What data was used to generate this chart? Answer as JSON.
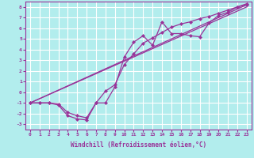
{
  "xlabel": "Windchill (Refroidissement éolien,°C)",
  "xlim": [
    -0.5,
    23.5
  ],
  "ylim": [
    -3.5,
    8.5
  ],
  "yticks": [
    -3,
    -2,
    -1,
    0,
    1,
    2,
    3,
    4,
    5,
    6,
    7,
    8
  ],
  "xticks": [
    0,
    1,
    2,
    3,
    4,
    5,
    6,
    7,
    8,
    9,
    10,
    11,
    12,
    13,
    14,
    15,
    16,
    17,
    18,
    19,
    20,
    21,
    22,
    23
  ],
  "bg_color": "#b2eded",
  "grid_color": "#ffffff",
  "line_color": "#993399",
  "line1_x": [
    0,
    1,
    2,
    3,
    4,
    5,
    6,
    7,
    8,
    9,
    10,
    11,
    12,
    13,
    14,
    15,
    16,
    17,
    18,
    19,
    20,
    21,
    22,
    23
  ],
  "line1_y": [
    -1,
    -1,
    -1,
    -1.2,
    -2.2,
    -2.5,
    -2.6,
    -1.0,
    -1.0,
    0.5,
    3.3,
    4.7,
    5.3,
    4.4,
    6.6,
    5.5,
    5.5,
    5.3,
    5.2,
    6.5,
    7.2,
    7.5,
    8.0,
    8.2
  ],
  "line2_x": [
    0,
    1,
    2,
    3,
    4,
    5,
    6,
    7,
    8,
    9,
    10,
    11,
    12,
    13,
    14,
    15,
    16,
    17,
    18,
    19,
    20,
    21,
    22,
    23
  ],
  "line2_y": [
    -1,
    -1,
    -1,
    -1.1,
    -1.9,
    -2.2,
    -2.4,
    -1.0,
    0.1,
    0.7,
    2.6,
    3.6,
    4.6,
    5.1,
    5.6,
    6.1,
    6.4,
    6.6,
    6.9,
    7.1,
    7.4,
    7.7,
    8.0,
    8.3
  ],
  "line3_x": [
    0,
    23
  ],
  "line3_y": [
    -1.0,
    8.2
  ],
  "line4_x": [
    0,
    23
  ],
  "line4_y": [
    -1.0,
    8.0
  ],
  "tick_color": "#993399",
  "tick_fontsize": 4.5,
  "xlabel_fontsize": 5.5
}
